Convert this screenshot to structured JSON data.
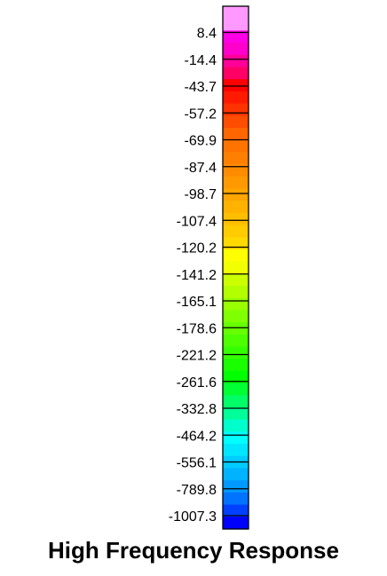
{
  "chart_data": {
    "type": "heatmap",
    "title": "High Frequency Response",
    "colorbar": {
      "orientation": "vertical",
      "tick_labels": [
        "8.4",
        "-14.4",
        "-43.7",
        "-57.2",
        "-69.9",
        "-87.4",
        "-98.7",
        "-107.4",
        "-120.2",
        "-141.2",
        "-165.1",
        "-178.6",
        "-221.2",
        "-261.6",
        "-332.8",
        "-464.2",
        "-556.1",
        "-789.8",
        "-1007.3"
      ],
      "bands_top_to_bottom": [
        "#ff99ff",
        "#ff99ff",
        "#ff00e6",
        "#ff00cc",
        "#ff0099",
        "#ff0066",
        "#ff0000",
        "#ff1a00",
        "#ff3300",
        "#ff4d00",
        "#ff6600",
        "#ff7300",
        "#ff8000",
        "#ff8c00",
        "#ff9900",
        "#ffa600",
        "#ffb300",
        "#ffbf00",
        "#ffcc00",
        "#ffd900",
        "#ffff00",
        "#f2ff00",
        "#ccff00",
        "#b3ff00",
        "#99ff00",
        "#80ff00",
        "#66ff00",
        "#4dff00",
        "#33ff00",
        "#1aff00",
        "#00ff00",
        "#00ff33",
        "#00ff66",
        "#00ff99",
        "#00ffcc",
        "#00ffff",
        "#00e6ff",
        "#00ccff",
        "#00b3ff",
        "#0099ff",
        "#0073ff",
        "#0040ff",
        "#0000ff"
      ]
    }
  }
}
